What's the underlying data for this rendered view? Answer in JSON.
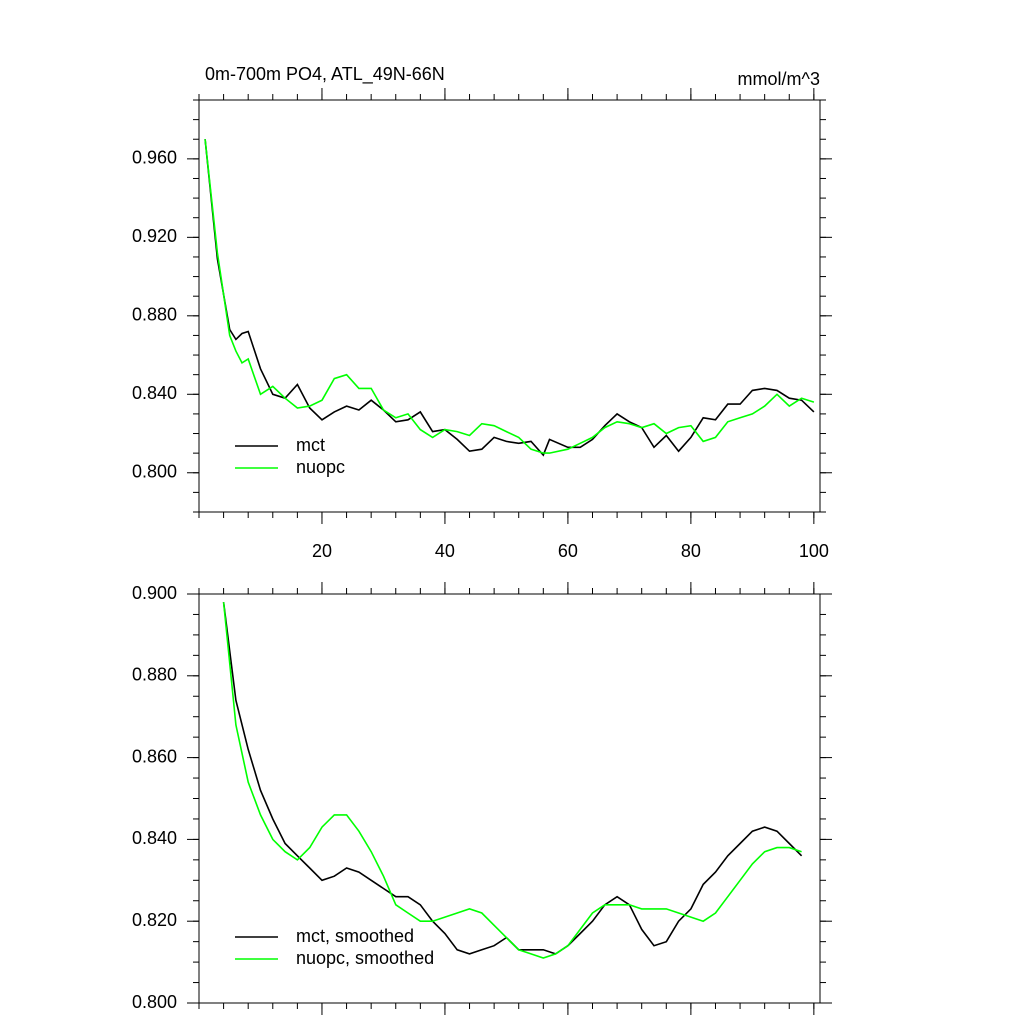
{
  "chart_data": [
    {
      "type": "line",
      "title": "0m-700m PO4, ATL_49N-66N",
      "units": "mmol/m^3",
      "x": [
        1,
        3,
        5,
        6,
        7,
        8,
        10,
        12,
        14,
        16,
        18,
        20,
        22,
        24,
        26,
        28,
        30,
        32,
        34,
        36,
        38,
        40,
        42,
        44,
        46,
        48,
        50,
        52,
        54,
        56,
        57,
        60,
        62,
        64,
        66,
        68,
        70,
        72,
        74,
        76,
        78,
        80,
        82,
        84,
        86,
        88,
        90,
        92,
        94,
        96,
        98,
        100
      ],
      "series": [
        {
          "name": "mct",
          "color": "#000000",
          "values": [
            0.97,
            0.909,
            0.873,
            0.868,
            0.871,
            0.872,
            0.853,
            0.84,
            0.838,
            0.845,
            0.833,
            0.827,
            0.831,
            0.834,
            0.832,
            0.837,
            0.832,
            0.826,
            0.827,
            0.831,
            0.821,
            0.822,
            0.817,
            0.811,
            0.812,
            0.818,
            0.816,
            0.815,
            0.816,
            0.809,
            0.817,
            0.813,
            0.813,
            0.817,
            0.824,
            0.83,
            0.826,
            0.823,
            0.813,
            0.819,
            0.811,
            0.818,
            0.828,
            0.827,
            0.835,
            0.835,
            0.842,
            0.843,
            0.842,
            0.838,
            0.837,
            0.831
          ]
        },
        {
          "name": "nuopc",
          "color": "#00ff00",
          "values": [
            0.97,
            0.912,
            0.87,
            0.862,
            0.856,
            0.858,
            0.84,
            0.844,
            0.838,
            0.833,
            0.834,
            0.837,
            0.848,
            0.85,
            0.843,
            0.843,
            0.832,
            0.828,
            0.83,
            0.822,
            0.818,
            0.822,
            0.821,
            0.819,
            0.825,
            0.824,
            0.821,
            0.818,
            0.812,
            0.81,
            0.81,
            0.812,
            0.815,
            0.818,
            0.823,
            0.826,
            0.825,
            0.823,
            0.825,
            0.82,
            0.823,
            0.824,
            0.816,
            0.818,
            0.826,
            0.828,
            0.83,
            0.834,
            0.84,
            0.834,
            0.838,
            0.836
          ]
        }
      ],
      "xlim": [
        0,
        101
      ],
      "xticks": [
        20,
        40,
        60,
        80,
        100
      ],
      "show_xticklabels": true,
      "xminor": 4,
      "ylim": [
        0.78,
        0.99
      ],
      "yticks": [
        {
          "value": 0.8,
          "label": "0.800"
        },
        {
          "value": 0.84,
          "label": "0.840"
        },
        {
          "value": 0.88,
          "label": "0.880"
        },
        {
          "value": 0.92,
          "label": "0.920"
        },
        {
          "value": 0.96,
          "label": "0.960"
        }
      ],
      "yminor": 3,
      "legend": "lower left"
    },
    {
      "type": "line",
      "x": [
        4,
        6,
        8,
        10,
        12,
        14,
        16,
        18,
        20,
        22,
        24,
        26,
        28,
        30,
        32,
        34,
        36,
        38,
        40,
        42,
        44,
        46,
        48,
        50,
        52,
        54,
        56,
        58,
        60,
        62,
        64,
        66,
        68,
        70,
        72,
        74,
        76,
        78,
        80,
        82,
        84,
        86,
        88,
        90,
        92,
        94,
        96,
        98
      ],
      "series": [
        {
          "name": "mct, smoothed",
          "color": "#000000",
          "values": [
            0.898,
            0.874,
            0.862,
            0.852,
            0.845,
            0.839,
            0.836,
            0.833,
            0.83,
            0.831,
            0.833,
            0.832,
            0.83,
            0.828,
            0.826,
            0.826,
            0.824,
            0.82,
            0.817,
            0.813,
            0.812,
            0.813,
            0.814,
            0.816,
            0.813,
            0.813,
            0.813,
            0.812,
            0.814,
            0.817,
            0.82,
            0.824,
            0.826,
            0.824,
            0.818,
            0.814,
            0.815,
            0.82,
            0.823,
            0.829,
            0.832,
            0.836,
            0.839,
            0.842,
            0.843,
            0.842,
            0.839,
            0.836
          ]
        },
        {
          "name": "nuopc, smoothed",
          "color": "#00ff00",
          "values": [
            0.898,
            0.868,
            0.854,
            0.846,
            0.84,
            0.837,
            0.835,
            0.838,
            0.843,
            0.846,
            0.846,
            0.842,
            0.837,
            0.831,
            0.824,
            0.822,
            0.82,
            0.82,
            0.821,
            0.822,
            0.823,
            0.822,
            0.819,
            0.816,
            0.813,
            0.812,
            0.811,
            0.812,
            0.814,
            0.818,
            0.822,
            0.824,
            0.824,
            0.824,
            0.823,
            0.823,
            0.823,
            0.822,
            0.821,
            0.82,
            0.822,
            0.826,
            0.83,
            0.834,
            0.837,
            0.838,
            0.838,
            0.837
          ]
        }
      ],
      "xlim": [
        0,
        101
      ],
      "xticks": [
        20,
        40,
        60,
        80,
        100
      ],
      "show_xticklabels": false,
      "xminor": 4,
      "ylim": [
        0.8,
        0.9
      ],
      "yticks": [
        {
          "value": 0.8,
          "label": "0.800"
        },
        {
          "value": 0.82,
          "label": "0.820"
        },
        {
          "value": 0.84,
          "label": "0.840"
        },
        {
          "value": 0.86,
          "label": "0.860"
        },
        {
          "value": 0.88,
          "label": "0.880"
        },
        {
          "value": 0.9,
          "label": "0.900"
        }
      ],
      "yminor": 3,
      "legend": "lower left"
    }
  ]
}
